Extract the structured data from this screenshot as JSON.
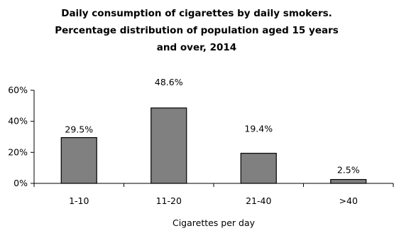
{
  "chart_data": {
    "type": "bar",
    "title_lines": [
      "Daily consumption of cigarettes by daily smokers.",
      "Percentage distribution of population aged 15 years",
      "and over, 2014"
    ],
    "categories": [
      "1-10",
      "11-20",
      "21-40",
      ">40"
    ],
    "values": [
      29.5,
      48.6,
      19.4,
      2.5
    ],
    "data_labels": [
      "29.5%",
      "48.6%",
      "19.4%",
      "2.5%"
    ],
    "xlabel": "Cigarettes per day",
    "ylabel": "",
    "ylim": [
      0,
      60
    ],
    "yticks": [
      0,
      20,
      40,
      60
    ],
    "ytick_labels": [
      "0%",
      "20%",
      "40%",
      "60%"
    ],
    "grid": false,
    "legend": "none",
    "colors": {
      "bar_fill": "#808080",
      "bar_stroke": "#000000",
      "axis": "#000000"
    }
  }
}
